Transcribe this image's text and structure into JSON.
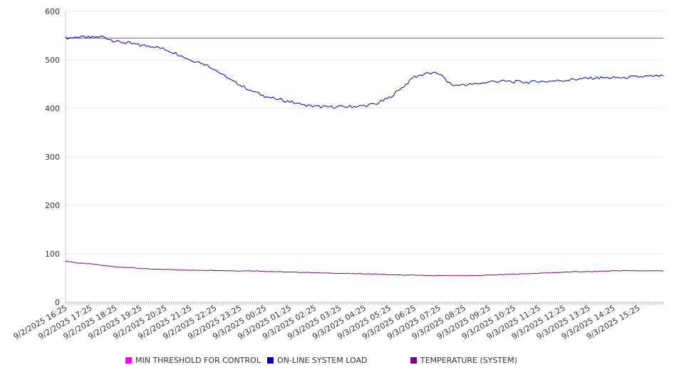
{
  "chart_data": {
    "type": "line",
    "title": "",
    "xlabel": "",
    "ylabel": "",
    "ylim": [
      0,
      600
    ],
    "yticks": [
      0,
      100,
      200,
      300,
      400,
      500,
      600
    ],
    "grid": true,
    "legend_position": "bottom",
    "x_tick_labels": [
      "9/2/2025 16:25",
      "9/2/2025 17:25",
      "9/2/2025 18:25",
      "9/2/2025 19:25",
      "9/2/2025 20:25",
      "9/2/2025 21:25",
      "9/2/2025 22:25",
      "9/2/2025 23:25",
      "9/3/2025 00:25",
      "9/3/2025 01:25",
      "9/3/2025 02:25",
      "9/3/2025 03:25",
      "9/3/2025 04:25",
      "9/3/2025 05:25",
      "9/3/2025 06:25",
      "9/3/2025 07:25",
      "9/3/2025 08:25",
      "9/3/2025 09:25",
      "9/3/2025 10:25",
      "9/3/2025 11:25",
      "9/3/2025 12:25",
      "9/3/2025 13:25",
      "9/3/2025 14:25",
      "9/3/2025 15:25"
    ],
    "x_sample_times": [
      "9/2/2025 16:25",
      "9/2/2025 16:55",
      "9/2/2025 17:25",
      "9/2/2025 17:55",
      "9/2/2025 18:25",
      "9/2/2025 18:55",
      "9/2/2025 19:25",
      "9/2/2025 19:55",
      "9/2/2025 20:25",
      "9/2/2025 20:55",
      "9/2/2025 21:25",
      "9/2/2025 21:55",
      "9/2/2025 22:25",
      "9/2/2025 22:55",
      "9/2/2025 23:25",
      "9/2/2025 23:55",
      "9/3/2025 00:25",
      "9/3/2025 00:55",
      "9/3/2025 01:25",
      "9/3/2025 01:55",
      "9/3/2025 02:25",
      "9/3/2025 02:55",
      "9/3/2025 03:25",
      "9/3/2025 03:55",
      "9/3/2025 04:25",
      "9/3/2025 04:55",
      "9/3/2025 05:25",
      "9/3/2025 05:55",
      "9/3/2025 06:25",
      "9/3/2025 06:55",
      "9/3/2025 07:25",
      "9/3/2025 07:55",
      "9/3/2025 08:25",
      "9/3/2025 08:55",
      "9/3/2025 09:25",
      "9/3/2025 09:55",
      "9/3/2025 10:25",
      "9/3/2025 10:55",
      "9/3/2025 11:25",
      "9/3/2025 11:55",
      "9/3/2025 12:25",
      "9/3/2025 12:55",
      "9/3/2025 13:25",
      "9/3/2025 13:55",
      "9/3/2025 14:25",
      "9/3/2025 14:55",
      "9/3/2025 15:25",
      "9/3/2025 15:55",
      "9/3/2025 16:25"
    ],
    "series": [
      {
        "name": "MIN THRESHOLD FOR CONTROL",
        "color": "#ff00ff",
        "values": [
          545,
          545,
          545,
          545,
          545,
          545,
          545,
          545,
          545,
          545,
          545,
          545,
          545,
          545,
          545,
          545,
          545,
          545,
          545,
          545,
          545,
          545,
          545,
          545,
          545,
          545,
          545,
          545,
          545,
          545,
          545,
          545,
          545,
          545,
          545,
          545,
          545,
          545,
          545,
          545,
          545,
          545,
          545,
          545,
          545,
          545,
          545,
          545,
          545
        ]
      },
      {
        "name": "ON-LINE SYSTEM LOAD",
        "color": "#0000cc",
        "values": [
          545,
          547,
          546,
          548,
          538,
          535,
          530,
          528,
          522,
          512,
          500,
          494,
          480,
          462,
          448,
          436,
          425,
          419,
          414,
          407,
          404,
          403,
          403,
          404,
          405,
          410,
          422,
          442,
          465,
          472,
          472,
          447,
          449,
          450,
          455,
          456,
          455,
          454,
          455,
          456,
          458,
          460,
          462,
          463,
          463,
          464,
          465,
          466,
          467
        ]
      },
      {
        "name": "TEMPERATURE (SYSTEM)",
        "color": "#800080",
        "values": [
          85,
          81,
          79,
          76,
          73,
          72,
          70,
          68,
          68,
          67,
          66,
          66,
          66,
          65,
          65,
          65,
          64,
          63,
          62,
          62,
          61,
          60,
          60,
          59,
          59,
          58,
          57,
          56,
          56,
          55,
          55,
          55,
          55,
          55,
          56,
          57,
          58,
          59,
          60,
          61,
          62,
          63,
          63,
          64,
          65,
          65,
          65,
          65,
          65
        ]
      }
    ]
  }
}
